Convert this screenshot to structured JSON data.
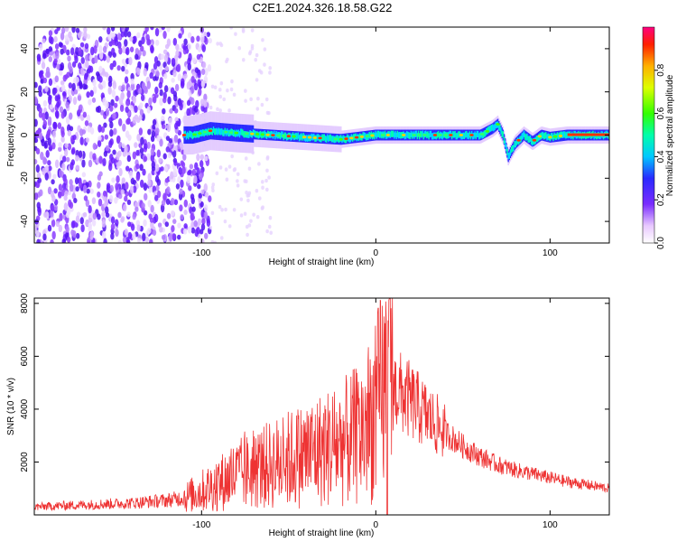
{
  "title": "C2E1.2024.326.18.58.G22",
  "chart_data": [
    {
      "type": "heatmap",
      "xlabel": "Height of straight line (km)",
      "ylabel": "Frequency (Hz)",
      "xlim": [
        -196,
        134
      ],
      "ylim": [
        -50,
        50
      ],
      "xticks": [
        -100,
        0,
        100
      ],
      "yticks": [
        -40,
        -20,
        0,
        20,
        40
      ],
      "colorbar": {
        "label": "Normalized spectral amplitude",
        "range": [
          0,
          1
        ],
        "ticks": [
          "0.0",
          "0.2",
          "0.4",
          "0.6",
          "0.8"
        ]
      },
      "ridge": {
        "description_points_x": [
          -105,
          -95,
          -80,
          -60,
          -40,
          -20,
          0,
          20,
          40,
          60,
          67,
          70,
          73,
          76,
          80,
          85,
          90,
          95,
          100,
          110,
          134
        ],
        "frequency_hz": [
          0,
          2,
          1,
          0,
          -1,
          -2,
          0,
          0,
          0,
          0,
          3,
          5,
          0,
          -10,
          -4,
          0,
          -3,
          0,
          -1,
          0,
          0
        ],
        "noise_region_below_km": -95
      }
    },
    {
      "type": "line",
      "xlabel": "Height of straight line (km)",
      "ylabel": "SNR (10 * v/v)",
      "xlim": [
        -196,
        134
      ],
      "ylim": [
        0,
        8200
      ],
      "xticks": [
        -100,
        0,
        100
      ],
      "yticks": [
        2000,
        4000,
        6000,
        8000
      ],
      "series": [
        {
          "color": "#ee3333",
          "x": [
            -196,
            -180,
            -160,
            -140,
            -120,
            -110,
            -100,
            -90,
            -80,
            -70,
            -60,
            -50,
            -40,
            -30,
            -20,
            -10,
            0,
            5,
            10,
            20,
            30,
            40,
            50,
            60,
            70,
            80,
            90,
            100,
            110,
            120,
            134
          ],
          "y": [
            300,
            350,
            400,
            450,
            550,
            650,
            900,
            1200,
            1500,
            1700,
            1900,
            2100,
            2300,
            2500,
            2700,
            3000,
            3900,
            5000,
            4800,
            4300,
            3700,
            3100,
            2600,
            2200,
            1900,
            1700,
            1550,
            1400,
            1250,
            1150,
            1000
          ]
        }
      ]
    }
  ]
}
